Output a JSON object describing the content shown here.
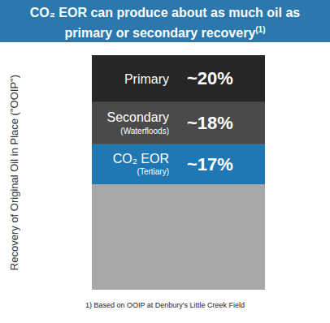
{
  "chart_data": {
    "type": "bar",
    "title": "CO₂ EOR can produce about as much oil as primary or secondary recovery",
    "title_note": "(1)",
    "ylabel": "Recovery of Original Oil in Place (\"OOIP\")",
    "footnote": "1) Based on OOIP at Denbury's Little Creek Field",
    "categories": [
      "Primary",
      "Secondary",
      "CO₂ EOR"
    ],
    "category_notes": [
      null,
      "(Waterfloods)",
      "(Tertiary)"
    ],
    "values": [
      20,
      18,
      17
    ],
    "value_labels": [
      "~20%",
      "~18%",
      "~17%"
    ],
    "colors": [
      "#262626",
      "#4a4a4a",
      "#1f78b4"
    ],
    "ylim": [
      0,
      100
    ],
    "yticks": [],
    "stacked": true,
    "data_labels": true,
    "tick_labels": false
  }
}
